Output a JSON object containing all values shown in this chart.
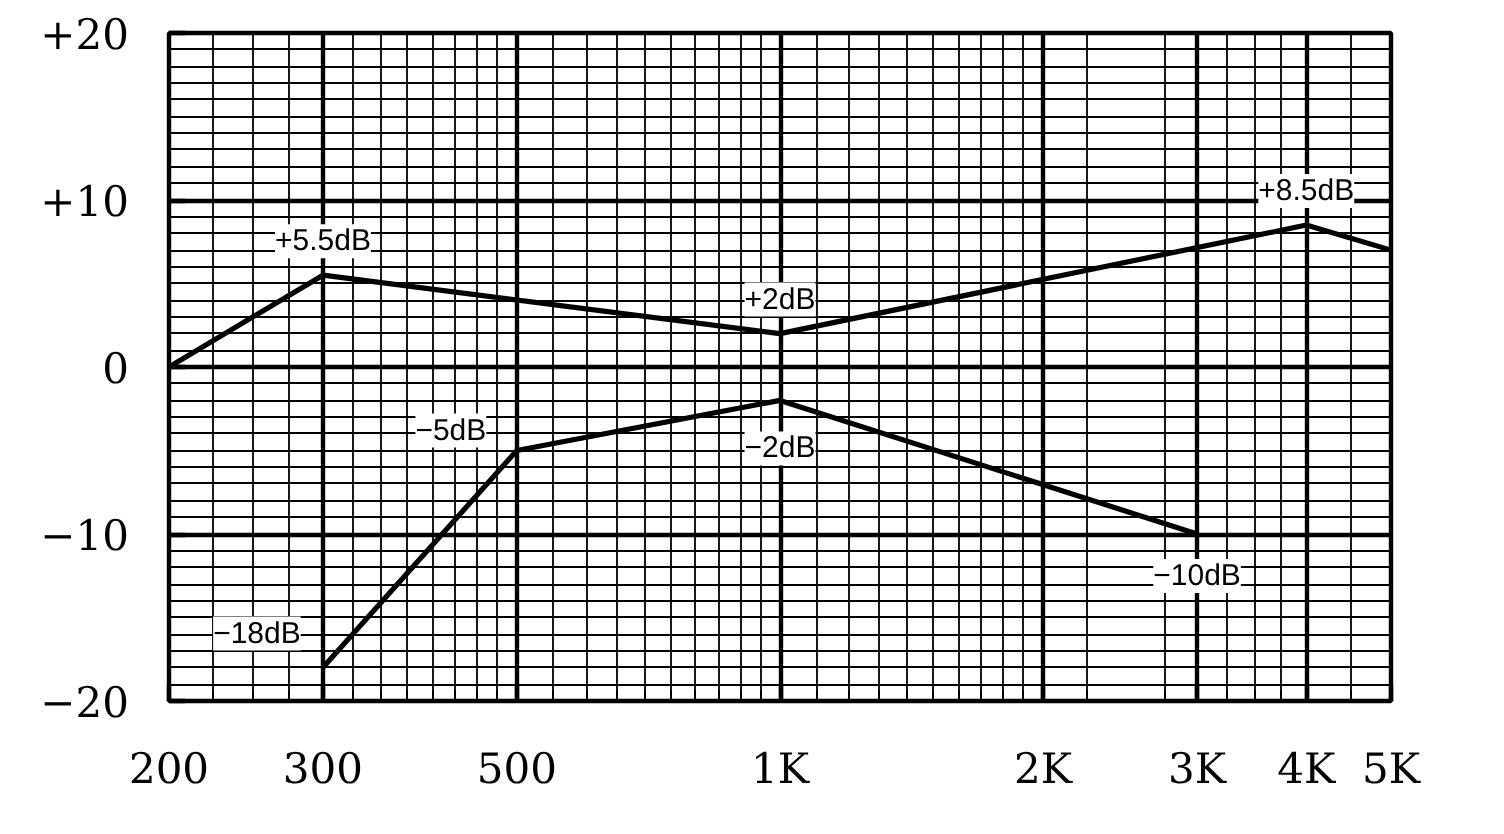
{
  "chart_data": {
    "type": "line",
    "log": "x",
    "grid": true,
    "line_style": "solid",
    "xlim": [
      200,
      5000
    ],
    "xticks": [
      200,
      300,
      500,
      {
        "value": 1000,
        "label": "1K"
      },
      {
        "value": 2000,
        "label": "2K"
      },
      {
        "value": 3000,
        "label": "3K"
      },
      {
        "value": 4000,
        "label": "4K"
      },
      {
        "value": 5000,
        "label": "5K"
      },
      {
        "value": 225,
        "label": null
      },
      {
        "value": 250,
        "label": null
      },
      {
        "value": 275,
        "label": null
      },
      {
        "value": 325,
        "label": null
      },
      {
        "value": 350,
        "label": null
      },
      {
        "value": 375,
        "label": null
      },
      {
        "value": 400,
        "label": null
      },
      {
        "value": 425,
        "label": null
      },
      {
        "value": 450,
        "label": null
      },
      {
        "value": 475,
        "label": null
      },
      {
        "value": 550,
        "label": null
      },
      {
        "value": 600,
        "label": null
      },
      {
        "value": 650,
        "label": null
      },
      {
        "value": 700,
        "label": null
      },
      {
        "value": 750,
        "label": null
      },
      {
        "value": 800,
        "label": null
      },
      {
        "value": 850,
        "label": null
      },
      {
        "value": 900,
        "label": null
      },
      {
        "value": 950,
        "label": null
      },
      {
        "value": 1100,
        "label": null
      },
      {
        "value": 1200,
        "label": null
      },
      {
        "value": 1300,
        "label": null
      },
      {
        "value": 1400,
        "label": null
      },
      {
        "value": 1500,
        "label": null
      },
      {
        "value": 1600,
        "label": null
      },
      {
        "value": 1700,
        "label": null
      },
      {
        "value": 1800,
        "label": null
      },
      {
        "value": 1900,
        "label": null
      },
      {
        "value": 2250,
        "label": null
      },
      {
        "value": 2750,
        "label": null
      },
      {
        "value": 3250,
        "label": null
      },
      {
        "value": 3500,
        "label": null
      },
      {
        "value": 3750,
        "label": null
      },
      {
        "value": 4500,
        "label": null
      }
    ],
    "ylim": [
      -20,
      20
    ],
    "yticks": [
      {
        "value": 20,
        "label": "+20"
      },
      {
        "value": 10,
        "label": "+10"
      },
      0,
      {
        "value": -10,
        "label": "−10"
      },
      {
        "value": -20,
        "label": "−20"
      },
      {
        "value": 19,
        "label": null
      },
      {
        "value": 18,
        "label": null
      },
      {
        "value": 17,
        "label": null
      },
      {
        "value": 16,
        "label": null
      },
      {
        "value": 15,
        "label": null
      },
      {
        "value": 14,
        "label": null
      },
      {
        "value": 13,
        "label": null
      },
      {
        "value": 12,
        "label": null
      },
      {
        "value": 11,
        "label": null
      },
      {
        "value": 9,
        "label": null
      },
      {
        "value": 8,
        "label": null
      },
      {
        "value": 7,
        "label": null
      },
      {
        "value": 6,
        "label": null
      },
      {
        "value": 5,
        "label": null
      },
      {
        "value": 4,
        "label": null
      },
      {
        "value": 3,
        "label": null
      },
      {
        "value": 2,
        "label": null
      },
      {
        "value": 1,
        "label": null
      },
      {
        "value": -1,
        "label": null
      },
      {
        "value": -2,
        "label": null
      },
      {
        "value": -3,
        "label": null
      },
      {
        "value": -4,
        "label": null
      },
      {
        "value": -5,
        "label": null
      },
      {
        "value": -6,
        "label": null
      },
      {
        "value": -7,
        "label": null
      },
      {
        "value": -8,
        "label": null
      },
      {
        "value": -9,
        "label": null
      },
      {
        "value": -11,
        "label": null
      },
      {
        "value": -12,
        "label": null
      },
      {
        "value": -13,
        "label": null
      },
      {
        "value": -14,
        "label": null
      },
      {
        "value": -15,
        "label": null
      },
      {
        "value": -16,
        "label": null
      },
      {
        "value": -17,
        "label": null
      },
      {
        "value": -18,
        "label": null
      },
      {
        "value": -19,
        "label": null
      }
    ],
    "series": [
      {
        "color": "#000000",
        "x": [
          200,
          300,
          1000,
          4000,
          5000
        ],
        "values": [
          0,
          5.5,
          2,
          8.5,
          7
        ],
        "value_labels": [
          null,
          "+5.5dB",
          "+2dB",
          "+8.5dB",
          null
        ]
      },
      {
        "color": "#000000",
        "x": [
          300,
          500,
          1000,
          3000
        ],
        "values": [
          -18,
          -5,
          -2,
          -10
        ],
        "value_labels": [
          "−18dB",
          "−5dB",
          "−2dB",
          "−10dB"
        ]
      }
    ]
  }
}
